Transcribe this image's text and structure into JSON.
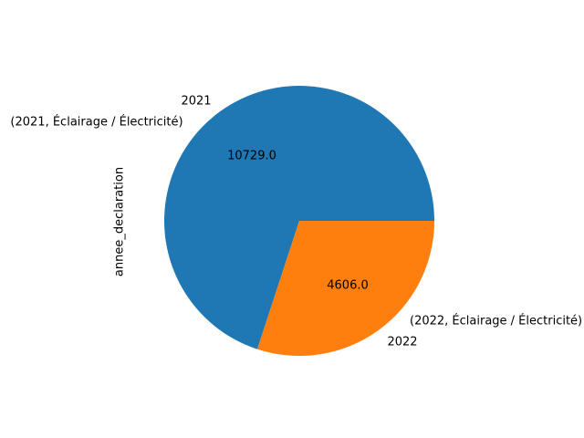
{
  "chart_data": {
    "type": "pie",
    "ylabel": "annee_declaration",
    "slices": [
      {
        "category": "2021",
        "label": "(2021, Éclairage / Électricité)",
        "value": 10729.0,
        "value_label": "10729.0",
        "color": "#1f77b4"
      },
      {
        "category": "2022",
        "label": "(2022, Éclairage / Électricité)",
        "value": 4606.0,
        "value_label": "4606.0",
        "color": "#ff7f0e"
      }
    ]
  }
}
